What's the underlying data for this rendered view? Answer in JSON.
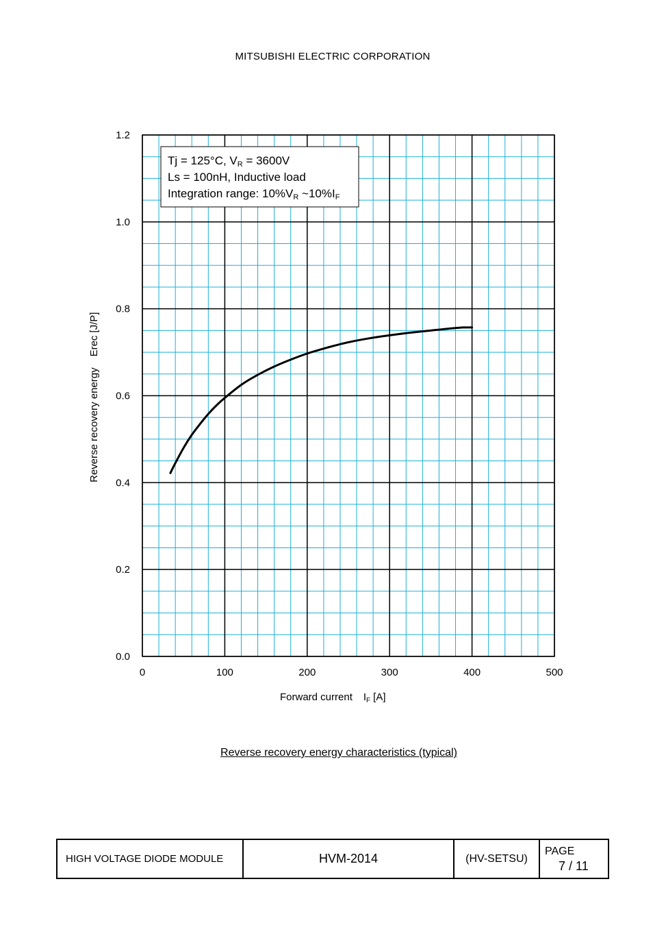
{
  "header": {
    "company": "MITSUBISHI ELECTRIC CORPORATION"
  },
  "chart_data": {
    "type": "line",
    "title": "",
    "xlabel": {
      "text": "Forward current",
      "symbol_main": "I",
      "symbol_sub": "F",
      "unit": "[A]"
    },
    "ylabel": {
      "text": "Reverse recovery energy",
      "symbol": "Erec",
      "unit": "[J/P]"
    },
    "xlim": [
      0,
      500
    ],
    "ylim": [
      0,
      1.2
    ],
    "x_ticks": [
      0,
      100,
      200,
      300,
      400,
      500
    ],
    "y_ticks": [
      0.0,
      0.2,
      0.4,
      0.6,
      0.8,
      1.0,
      1.2
    ],
    "x_tick_labels": [
      "0",
      "100",
      "200",
      "300",
      "400",
      "500"
    ],
    "y_tick_labels": [
      "0.0",
      "0.2",
      "0.4",
      "0.6",
      "0.8",
      "1.0",
      "1.2"
    ],
    "grid": true,
    "annotation": {
      "line1": {
        "a": "Tj = 125°C, V",
        "sub": "R",
        "b": " = 3600V"
      },
      "line2": "Ls = 100nH, Inductive load",
      "line3": {
        "a": "Integration range: 10%V",
        "sub1": "R",
        "b": " ~10%I",
        "sub2": "F"
      }
    },
    "series": [
      {
        "x": [
          34,
          40,
          50,
          60,
          70,
          80,
          90,
          100,
          120,
          140,
          160,
          180,
          200,
          225,
          250,
          275,
          300,
          325,
          350,
          375,
          390,
          400
        ],
        "y": [
          0.422,
          0.445,
          0.48,
          0.51,
          0.535,
          0.558,
          0.578,
          0.595,
          0.625,
          0.648,
          0.667,
          0.683,
          0.697,
          0.711,
          0.723,
          0.732,
          0.739,
          0.745,
          0.75,
          0.755,
          0.757,
          0.757
        ]
      }
    ]
  },
  "caption": "Reverse recovery energy characteristics (typical)",
  "footer": {
    "product": "HIGH VOLTAGE DIODE MODULE",
    "model": "HVM-2014",
    "code": "(HV-SETSU)",
    "page_label": "PAGE",
    "page_number": "7 / 11"
  }
}
